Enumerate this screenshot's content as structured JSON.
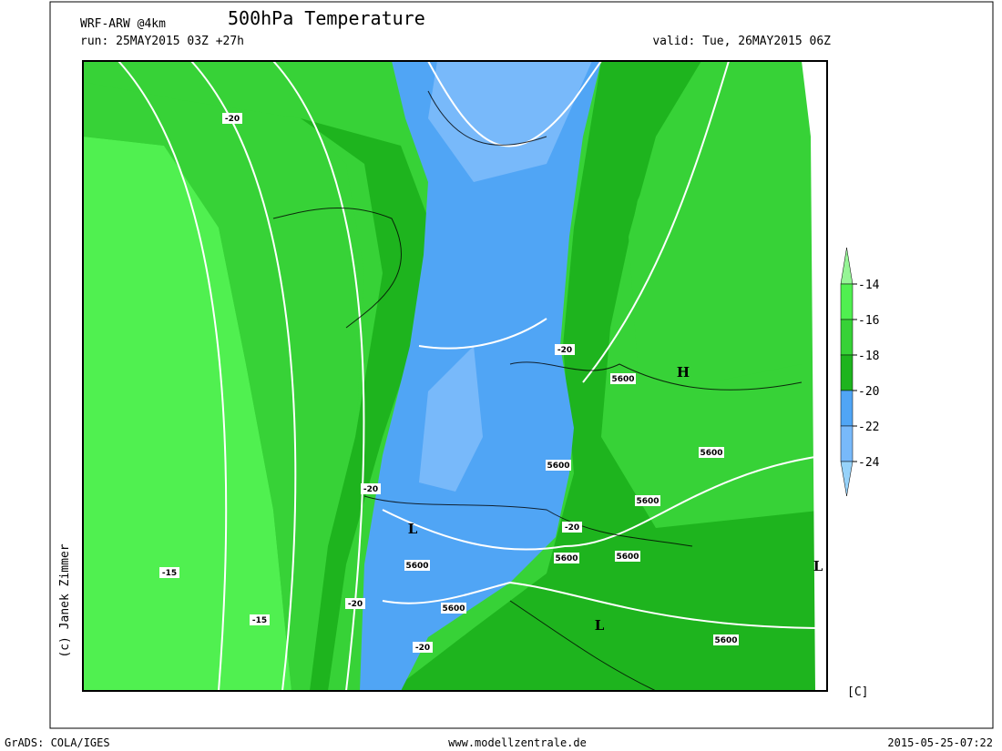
{
  "header": {
    "model": "WRF-ARW @4km",
    "title": "500hPa Temperature",
    "run": "run: 25MAY2015 03Z +27h",
    "valid": "valid: Tue, 26MAY2015 06Z"
  },
  "colorbar": {
    "levels": [
      -14,
      -16,
      -18,
      -20,
      -22,
      -24
    ],
    "unit": "[C]"
  },
  "contour_labels": [
    "-20",
    "-20",
    "-20",
    "-20",
    "-20",
    "-20",
    "-15",
    "-15",
    "5600",
    "5600",
    "5600",
    "5600",
    "5600",
    "5600",
    "5600",
    "5600",
    "5600"
  ],
  "pressure_centers": [
    "H",
    "L",
    "L",
    "L"
  ],
  "credit": "(c) Janek Zimmer",
  "footer": {
    "software": "GrADS: COLA/IGES",
    "site": "www.modellzentrale.de",
    "timestamp": "2015-05-25-07:22"
  }
}
